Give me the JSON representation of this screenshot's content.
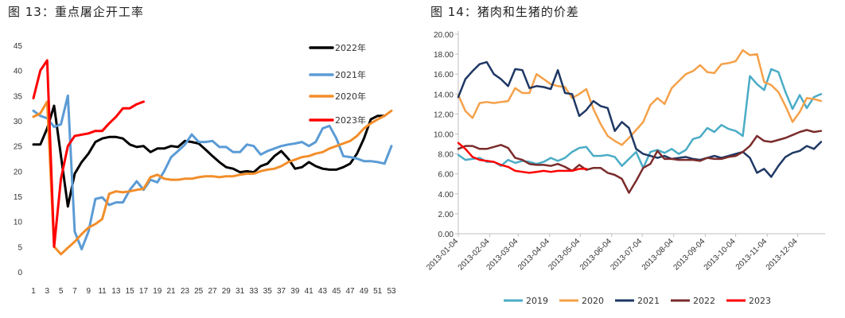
{
  "chart_data": [
    {
      "type": "line",
      "title": "图 13：重点屠企开工率",
      "xlabel": "",
      "ylabel": "",
      "x_ticks": [
        1,
        3,
        5,
        7,
        9,
        11,
        13,
        15,
        17,
        19,
        21,
        23,
        25,
        27,
        29,
        31,
        33,
        35,
        37,
        39,
        41,
        43,
        45,
        47,
        49,
        51,
        53
      ],
      "xlim": [
        1,
        53
      ],
      "ylim": [
        0,
        45
      ],
      "y_ticks": [
        0,
        5,
        10,
        15,
        20,
        25,
        30,
        35,
        40,
        45
      ],
      "grid": false,
      "legend_position": "top-right",
      "series": [
        {
          "name": "2022年",
          "color": "#000000",
          "x": [
            1,
            2,
            3,
            4,
            6,
            7,
            8,
            9,
            10,
            11,
            12,
            13,
            14,
            15,
            16,
            17,
            18,
            19,
            20,
            21,
            22,
            23,
            24,
            25,
            26,
            27,
            28,
            29,
            30,
            31,
            32,
            33,
            34,
            35,
            36,
            37,
            38,
            39,
            40,
            41,
            42,
            43,
            44,
            45,
            46,
            47,
            48,
            49,
            50,
            51,
            52
          ],
          "values": [
            25.3,
            25.3,
            28.5,
            33,
            13,
            19.5,
            21.8,
            23.5,
            25.8,
            26.5,
            26.8,
            26.8,
            26.5,
            25.3,
            24.8,
            25,
            23.8,
            24.5,
            24.5,
            25,
            24.8,
            26,
            25.8,
            25.5,
            24.3,
            23,
            21.8,
            20.8,
            20.5,
            19.8,
            20,
            19.8,
            21,
            21.5,
            23,
            24,
            22.5,
            20.5,
            20.8,
            21.8,
            21,
            20.5,
            20.3,
            20.3,
            20.8,
            21.5,
            23.5,
            26.5,
            30.3,
            31,
            31
          ]
        },
        {
          "name": "2021年",
          "color": "#5b9bd5",
          "x": [
            1,
            2,
            3,
            4,
            5,
            6,
            7,
            8,
            9,
            10,
            11,
            12,
            13,
            14,
            15,
            16,
            17,
            18,
            19,
            20,
            21,
            22,
            23,
            24,
            25,
            26,
            27,
            28,
            29,
            30,
            31,
            32,
            33,
            34,
            35,
            36,
            37,
            38,
            39,
            40,
            41,
            42,
            43,
            44,
            45,
            46,
            47,
            48,
            49,
            50,
            51,
            52,
            53
          ],
          "values": [
            32,
            31,
            30.5,
            28.8,
            29.3,
            35,
            8,
            4.5,
            8,
            14.5,
            14.8,
            13.3,
            13.8,
            13.8,
            16.3,
            18,
            16.3,
            18.3,
            17.8,
            20,
            22.8,
            24,
            25.3,
            27.3,
            25.8,
            25.8,
            26,
            24.8,
            24.8,
            23.8,
            23.8,
            25.3,
            25,
            23.3,
            24,
            24.5,
            25,
            25.3,
            25.5,
            25.8,
            25,
            25.8,
            28.5,
            29,
            26.5,
            23,
            22.8,
            22.5,
            22,
            22,
            21.8,
            21.5,
            25
          ]
        },
        {
          "name": "2020年",
          "color": "#f28e2b",
          "x": [
            1,
            2,
            3,
            4,
            5,
            6,
            7,
            8,
            9,
            10,
            11,
            12,
            13,
            14,
            15,
            16,
            17,
            18,
            19,
            20,
            21,
            22,
            23,
            24,
            25,
            26,
            27,
            28,
            29,
            30,
            31,
            32,
            33,
            34,
            35,
            36,
            37,
            38,
            39,
            40,
            41,
            42,
            43,
            44,
            45,
            46,
            47,
            48,
            49,
            50,
            51,
            52,
            53
          ],
          "values": [
            30.8,
            31.5,
            33.8,
            5,
            3.5,
            4.8,
            6,
            7.5,
            8.8,
            9.5,
            10.5,
            15.5,
            16,
            15.8,
            16,
            16.3,
            16.5,
            18.8,
            19.3,
            18.5,
            18.3,
            18.3,
            18.5,
            18.5,
            18.8,
            19,
            19,
            18.8,
            19,
            19,
            19.3,
            19.5,
            19.5,
            20,
            20.3,
            20.5,
            21,
            21.8,
            22.3,
            22.8,
            23,
            23.5,
            23.8,
            24.5,
            25,
            25.5,
            26,
            27,
            28.5,
            29.5,
            30.3,
            31,
            32
          ]
        },
        {
          "name": "2023年",
          "color": "#ff0000",
          "x": [
            1,
            2,
            3,
            4,
            5,
            6,
            7,
            9,
            10,
            11,
            12,
            13,
            14,
            15,
            16,
            17
          ],
          "values": [
            34.5,
            40,
            42,
            5,
            18.5,
            25,
            27,
            27.5,
            28,
            28,
            29.5,
            30.8,
            32.5,
            32.5,
            33.3,
            33.8
          ]
        }
      ]
    },
    {
      "type": "line",
      "title": "图 14：猪肉和生猪的价差",
      "xlabel": "",
      "ylabel": "",
      "x_ticks": [
        "2013-01-04",
        "2013-02-04",
        "2013-03-04",
        "2013-04-04",
        "2013-05-04",
        "2013-06-04",
        "2013-07-04",
        "2013-08-04",
        "2013-09-04",
        "2013-10-04",
        "2013-11-04",
        "2013-12-04"
      ],
      "xlim": [
        "2013-01-04",
        "2013-12-31"
      ],
      "ylim": [
        0,
        20
      ],
      "y_ticks": [
        "0.00",
        "2.00",
        "4.00",
        "6.00",
        "8.00",
        "10.00",
        "12.00",
        "14.00",
        "16.00",
        "18.00",
        "20.00"
      ],
      "grid": false,
      "legend_position": "bottom",
      "series": [
        {
          "name": "2019",
          "color": "#4bacc6",
          "x": [
            "2013-01-04",
            "2013-01-11",
            "2013-01-18",
            "2013-01-25",
            "2013-02-01",
            "2013-02-08",
            "2013-02-15",
            "2013-02-22",
            "2013-03-01",
            "2013-03-08",
            "2013-03-15",
            "2013-03-22",
            "2013-03-29",
            "2013-04-05",
            "2013-04-12",
            "2013-04-19",
            "2013-04-26",
            "2013-05-03",
            "2013-05-10",
            "2013-05-17",
            "2013-05-24",
            "2013-05-31",
            "2013-06-07",
            "2013-06-14",
            "2013-06-21",
            "2013-06-28",
            "2013-07-05",
            "2013-07-12",
            "2013-07-19",
            "2013-07-26",
            "2013-08-02",
            "2013-08-09",
            "2013-08-16",
            "2013-08-23",
            "2013-08-30",
            "2013-09-06",
            "2013-09-13",
            "2013-09-20",
            "2013-09-27",
            "2013-10-04",
            "2013-10-11",
            "2013-10-18",
            "2013-10-25",
            "2013-11-01",
            "2013-11-08",
            "2013-11-15",
            "2013-11-22",
            "2013-11-29",
            "2013-12-06",
            "2013-12-13",
            "2013-12-20",
            "2013-12-27"
          ],
          "values": [
            7.9,
            7.4,
            7.5,
            7.6,
            7.2,
            7.2,
            6.8,
            7.4,
            7.1,
            7.3,
            7.2,
            7.0,
            7.2,
            7.6,
            7.3,
            7.6,
            8.2,
            8.6,
            8.7,
            7.8,
            7.8,
            7.9,
            7.7,
            6.8,
            7.5,
            8.2,
            6.6,
            8.2,
            8.4,
            8.1,
            8.5,
            8.0,
            8.4,
            9.5,
            9.7,
            10.6,
            10.2,
            10.9,
            10.5,
            10.3,
            9.8,
            15.8,
            15.0,
            14.4,
            16.5,
            16.2,
            14.2,
            12.5,
            13.9,
            12.6,
            13.7,
            14.0
          ]
        },
        {
          "name": "2020",
          "color": "#f4a14a",
          "x": [
            "2013-01-04",
            "2013-01-11",
            "2013-01-18",
            "2013-01-25",
            "2013-02-01",
            "2013-02-08",
            "2013-02-15",
            "2013-02-22",
            "2013-03-01",
            "2013-03-08",
            "2013-03-15",
            "2013-03-22",
            "2013-03-29",
            "2013-04-05",
            "2013-04-12",
            "2013-04-19",
            "2013-04-26",
            "2013-05-03",
            "2013-05-10",
            "2013-05-17",
            "2013-05-24",
            "2013-05-31",
            "2013-06-07",
            "2013-06-14",
            "2013-06-21",
            "2013-06-28",
            "2013-07-05",
            "2013-07-12",
            "2013-07-19",
            "2013-07-26",
            "2013-08-02",
            "2013-08-09",
            "2013-08-16",
            "2013-08-23",
            "2013-08-30",
            "2013-09-06",
            "2013-09-13",
            "2013-09-20",
            "2013-09-27",
            "2013-10-04",
            "2013-10-11",
            "2013-10-18",
            "2013-10-25",
            "2013-11-01",
            "2013-11-08",
            "2013-11-15",
            "2013-11-22",
            "2013-11-29",
            "2013-12-06",
            "2013-12-13",
            "2013-12-20",
            "2013-12-27"
          ],
          "values": [
            13.9,
            12.3,
            11.6,
            13.1,
            13.2,
            13.1,
            13.2,
            13.3,
            14.6,
            14.1,
            14.1,
            16.0,
            15.5,
            15.0,
            14.8,
            14.7,
            13.6,
            14.0,
            14.5,
            12.5,
            11.0,
            9.8,
            9.3,
            8.9,
            9.6,
            10.4,
            11.2,
            12.9,
            13.6,
            13.0,
            14.6,
            15.3,
            16.0,
            16.3,
            16.9,
            16.2,
            16.1,
            17.0,
            17.1,
            17.3,
            18.4,
            17.9,
            18.0,
            15.2,
            14.9,
            14.2,
            12.8,
            11.2,
            12.2,
            13.6,
            13.5,
            13.3
          ]
        },
        {
          "name": "2021",
          "color": "#1f3864",
          "x": [
            "2013-01-04",
            "2013-01-11",
            "2013-01-18",
            "2013-01-25",
            "2013-02-01",
            "2013-02-08",
            "2013-02-15",
            "2013-02-22",
            "2013-03-01",
            "2013-03-08",
            "2013-03-15",
            "2013-03-22",
            "2013-03-29",
            "2013-04-05",
            "2013-04-12",
            "2013-04-19",
            "2013-04-26",
            "2013-05-03",
            "2013-05-10",
            "2013-05-17",
            "2013-05-24",
            "2013-05-31",
            "2013-06-07",
            "2013-06-14",
            "2013-06-21",
            "2013-06-28",
            "2013-07-05",
            "2013-07-12",
            "2013-07-19",
            "2013-07-26",
            "2013-08-02",
            "2013-08-09",
            "2013-08-16",
            "2013-08-23",
            "2013-08-30",
            "2013-09-06",
            "2013-09-13",
            "2013-09-20",
            "2013-09-27",
            "2013-10-04",
            "2013-10-11",
            "2013-10-18",
            "2013-10-25",
            "2013-11-01",
            "2013-11-08",
            "2013-11-15",
            "2013-11-22",
            "2013-11-29",
            "2013-12-06",
            "2013-12-13",
            "2013-12-20",
            "2013-12-27"
          ],
          "values": [
            13.7,
            15.5,
            16.3,
            17.0,
            17.2,
            16.0,
            15.5,
            14.8,
            16.5,
            16.4,
            14.6,
            14.8,
            14.7,
            14.5,
            16.4,
            14.1,
            14.0,
            11.8,
            12.4,
            13.3,
            12.8,
            12.6,
            10.3,
            11.2,
            10.6,
            8.5,
            8.0,
            7.8,
            7.6,
            7.8,
            7.5,
            7.6,
            7.7,
            7.5,
            7.4,
            7.6,
            7.8,
            7.6,
            7.8,
            8.0,
            8.2,
            7.6,
            6.1,
            6.5,
            5.7,
            6.8,
            7.7,
            8.1,
            8.3,
            8.8,
            8.5,
            9.2
          ]
        },
        {
          "name": "2022",
          "color": "#7b2c2c",
          "x": [
            "2013-01-04",
            "2013-01-11",
            "2013-01-18",
            "2013-01-25",
            "2013-02-01",
            "2013-02-08",
            "2013-02-15",
            "2013-02-22",
            "2013-03-01",
            "2013-03-08",
            "2013-03-15",
            "2013-03-22",
            "2013-03-29",
            "2013-04-05",
            "2013-04-12",
            "2013-04-19",
            "2013-04-26",
            "2013-05-03",
            "2013-05-10",
            "2013-05-17",
            "2013-05-24",
            "2013-05-31",
            "2013-06-07",
            "2013-06-14",
            "2013-06-21",
            "2013-06-28",
            "2013-07-05",
            "2013-07-12",
            "2013-07-19",
            "2013-07-26",
            "2013-08-02",
            "2013-08-09",
            "2013-08-16",
            "2013-08-23",
            "2013-08-30",
            "2013-09-06",
            "2013-09-13",
            "2013-09-20",
            "2013-09-27",
            "2013-10-04",
            "2013-10-11",
            "2013-10-18",
            "2013-10-25",
            "2013-11-01",
            "2013-11-08",
            "2013-11-15",
            "2013-11-22",
            "2013-11-29",
            "2013-12-06",
            "2013-12-13",
            "2013-12-20",
            "2013-12-27"
          ],
          "values": [
            8.5,
            8.8,
            8.8,
            8.5,
            8.5,
            8.7,
            8.9,
            8.6,
            7.6,
            7.4,
            7.0,
            6.9,
            6.9,
            6.8,
            7.0,
            6.7,
            6.3,
            6.9,
            6.4,
            6.6,
            6.6,
            6.1,
            5.9,
            5.5,
            4.1,
            5.3,
            6.6,
            7.0,
            8.3,
            7.5,
            7.5,
            7.4,
            7.4,
            7.4,
            7.3,
            7.6,
            7.5,
            7.5,
            7.7,
            7.8,
            8.2,
            8.8,
            9.8,
            9.3,
            9.2,
            9.4,
            9.6,
            9.9,
            10.2,
            10.4,
            10.2,
            10.3
          ]
        },
        {
          "name": "2023",
          "color": "#ff0000",
          "x": [
            "2013-01-04",
            "2013-01-11",
            "2013-01-18",
            "2013-01-25",
            "2013-02-01",
            "2013-02-08",
            "2013-02-15",
            "2013-02-22",
            "2013-03-01",
            "2013-03-08",
            "2013-03-15",
            "2013-03-22",
            "2013-03-29",
            "2013-04-05",
            "2013-04-12",
            "2013-04-19",
            "2013-04-26",
            "2013-05-03",
            "2013-05-10"
          ],
          "values": [
            9.1,
            8.5,
            7.7,
            7.4,
            7.3,
            7.2,
            6.9,
            6.7,
            6.3,
            6.2,
            6.1,
            6.2,
            6.3,
            6.2,
            6.3,
            6.3,
            6.3,
            6.5,
            6.5
          ]
        }
      ]
    }
  ]
}
